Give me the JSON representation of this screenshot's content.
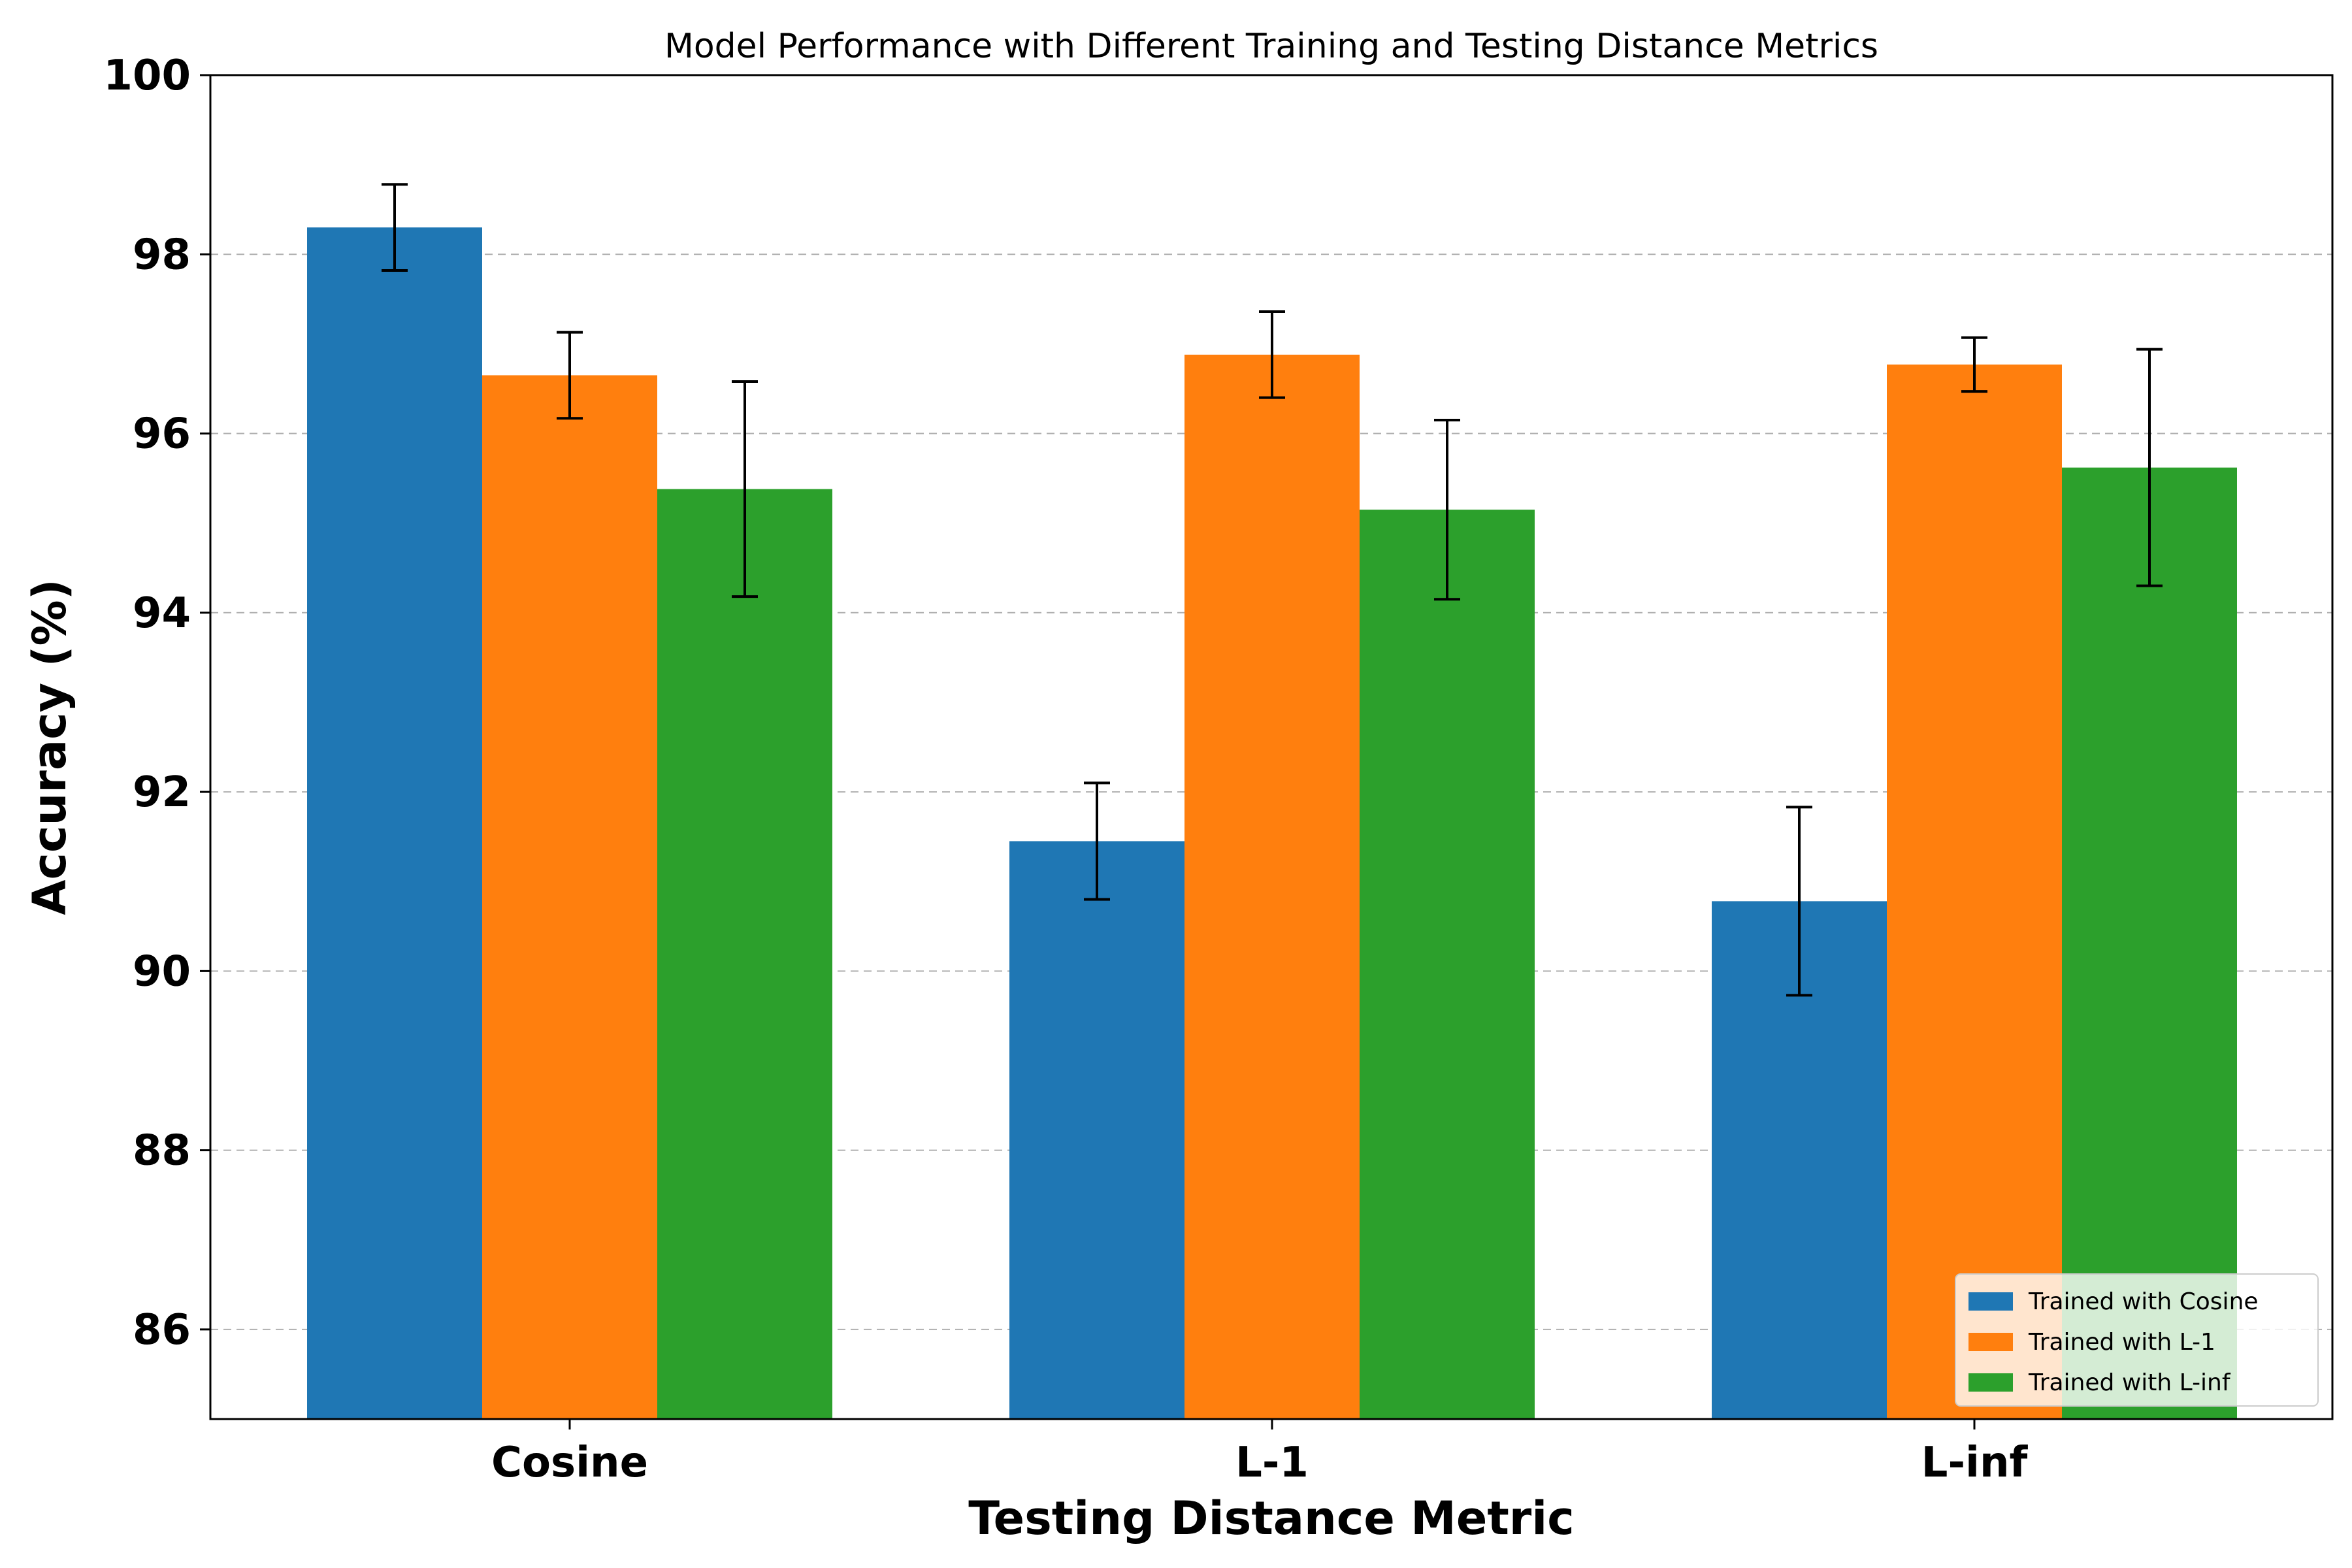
{
  "chart_data": {
    "type": "bar",
    "title": "Model Performance with Different Training and Testing Distance Metrics",
    "xlabel": "Testing Distance Metric",
    "ylabel": "Accuracy (%)",
    "categories": [
      "Cosine",
      "L-1",
      "L-inf"
    ],
    "ylim": [
      85,
      100
    ],
    "yticks": [
      86,
      88,
      90,
      92,
      94,
      96,
      98,
      100
    ],
    "grid": "y-dashed",
    "legend_position": "lower right",
    "series": [
      {
        "name": "Trained with Cosine",
        "color": "#1f77b4",
        "values": [
          98.3,
          91.45,
          90.78
        ],
        "errors": [
          0.48,
          0.65,
          1.05
        ]
      },
      {
        "name": "Trained with L-1",
        "color": "#ff7f0e",
        "values": [
          96.65,
          96.88,
          96.77
        ],
        "errors": [
          0.48,
          0.48,
          0.3
        ]
      },
      {
        "name": "Trained with L-inf",
        "color": "#2ca02c",
        "values": [
          95.38,
          95.15,
          95.62
        ],
        "errors": [
          1.2,
          1.0,
          1.32
        ]
      }
    ]
  }
}
